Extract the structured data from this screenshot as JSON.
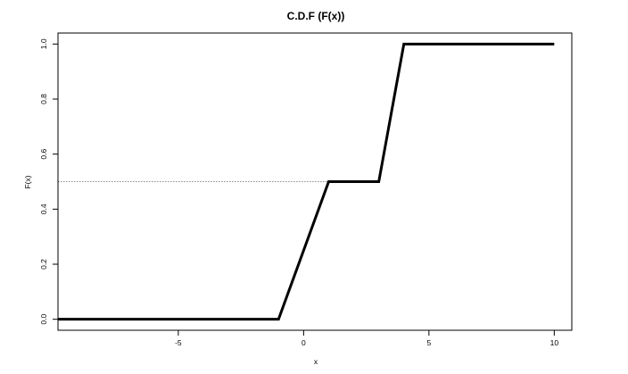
{
  "chart_data": {
    "type": "line",
    "title": "C.D.F (F(x))",
    "xlabel": "x",
    "ylabel": "F(x)",
    "xlim": [
      -9.8,
      10.7
    ],
    "ylim": [
      -0.04,
      1.04
    ],
    "x_ticks": [
      {
        "value": -5,
        "label": "-5"
      },
      {
        "value": 0,
        "label": "0"
      },
      {
        "value": 5,
        "label": "5"
      },
      {
        "value": 10,
        "label": "10"
      }
    ],
    "y_ticks": [
      {
        "value": 0.0,
        "label": "0.0"
      },
      {
        "value": 0.2,
        "label": "0.2"
      },
      {
        "value": 0.4,
        "label": "0.4"
      },
      {
        "value": 0.6,
        "label": "0.6"
      },
      {
        "value": 0.8,
        "label": "0.8"
      },
      {
        "value": 1.0,
        "label": "1.0"
      }
    ],
    "grid": false,
    "legend": "none",
    "series": [
      {
        "x": [
          -10,
          -1,
          1,
          3,
          4,
          10
        ],
        "y": [
          0,
          0,
          0.5,
          0.5,
          1,
          1
        ],
        "color": "#000000",
        "style": "solid"
      }
    ],
    "reference_lines": [
      {
        "x": [
          -10,
          1
        ],
        "y": [
          0.5,
          0.5
        ],
        "color": "#555555",
        "style": "dotted"
      }
    ]
  }
}
